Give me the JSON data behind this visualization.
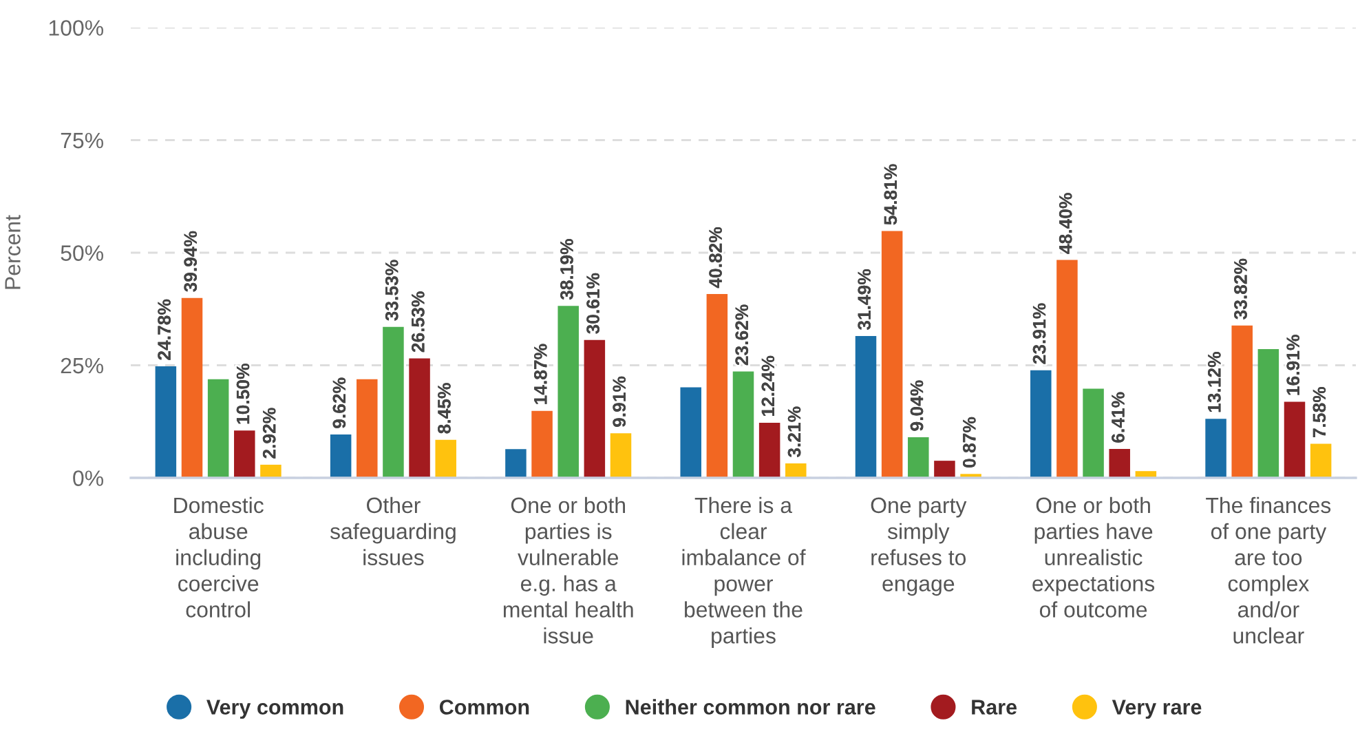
{
  "chart_data": {
    "type": "bar",
    "ylabel": "Percent",
    "categories": [
      "Domestic\nabuse\nincluding\ncoercive\ncontrol",
      "Other\nsafeguarding\nissues",
      "One or both\nparties is\nvulnerable\ne.g. has a\nmental health\nissue",
      "There is a\nclear\nimbalance of\npower\nbetween the\nparties",
      "One party\nsimply\nrefuses to\nengage",
      "One or both\nparties have\nunrealistic\nexpectations\nof outcome",
      "The finances\nof one party\nare too\ncomplex\nand/or\nunclear"
    ],
    "series": [
      {
        "name": "Very common",
        "color": "#1a6fa8",
        "values": [
          24.78,
          9.62,
          6.4,
          20.1,
          31.49,
          23.91,
          13.12
        ],
        "value_labels": [
          "24.78%",
          "9.62%",
          null,
          null,
          "31.49%",
          "23.91%",
          "13.12%"
        ]
      },
      {
        "name": "Common",
        "color": "#f26722",
        "values": [
          39.94,
          21.9,
          14.87,
          40.82,
          54.81,
          48.4,
          33.82
        ],
        "value_labels": [
          "39.94%",
          null,
          "14.87%",
          "40.82%",
          "54.81%",
          "48.40%",
          "33.82%"
        ]
      },
      {
        "name": "Neither common nor rare",
        "color": "#4caf50",
        "values": [
          21.9,
          33.53,
          38.19,
          23.62,
          9.04,
          19.8,
          28.6
        ],
        "value_labels": [
          null,
          "33.53%",
          "38.19%",
          "23.62%",
          "9.04%",
          null,
          null
        ]
      },
      {
        "name": "Rare",
        "color": "#a31b1f",
        "values": [
          10.5,
          26.53,
          30.61,
          12.24,
          3.8,
          6.41,
          16.91
        ],
        "value_labels": [
          "10.50%",
          "26.53%",
          "30.61%",
          "12.24%",
          null,
          "6.41%",
          "16.91%"
        ]
      },
      {
        "name": "Very rare",
        "color": "#ffc20e",
        "values": [
          2.92,
          8.45,
          9.91,
          3.21,
          0.87,
          1.5,
          7.58
        ],
        "value_labels": [
          "2.92%",
          "8.45%",
          "9.91%",
          "3.21%",
          "0.87%",
          null,
          "7.58%"
        ]
      }
    ],
    "ylim": [
      0,
      100
    ],
    "yticks": [
      {
        "value": 0,
        "label": "0%"
      },
      {
        "value": 25,
        "label": "25%"
      },
      {
        "value": 50,
        "label": "50%"
      },
      {
        "value": 75,
        "label": "75%"
      },
      {
        "value": 100,
        "label": "100%"
      }
    ],
    "grid": "y",
    "legend": "bottom"
  }
}
